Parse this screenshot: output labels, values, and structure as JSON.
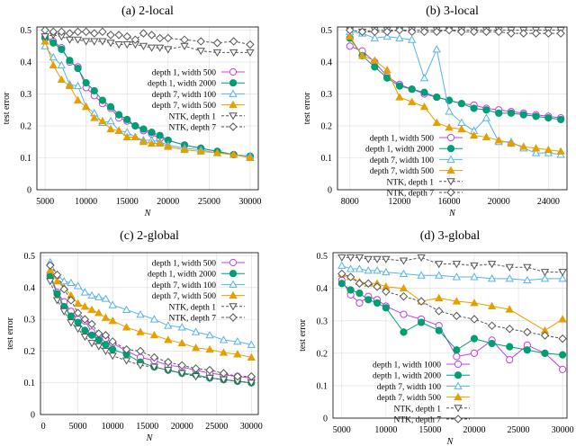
{
  "chart_data": [
    {
      "type": "line",
      "title": "(a) 2-local",
      "xlabel": "N",
      "ylabel": "test error",
      "xlim": [
        4000,
        31000
      ],
      "ylim": [
        0,
        0.51
      ],
      "xticks": [
        5000,
        10000,
        15000,
        20000,
        25000,
        30000
      ],
      "yticks": [
        0,
        0.1,
        0.2,
        0.3,
        0.4,
        0.5
      ],
      "grid": true,
      "legend": "center-right",
      "x": [
        5000,
        6000,
        7000,
        8000,
        9000,
        10000,
        11000,
        12000,
        13000,
        14000,
        15000,
        16000,
        17000,
        18000,
        19000,
        20000,
        22000,
        24000,
        26000,
        28000,
        30000
      ],
      "series": [
        {
          "name": "depth 1, width 500",
          "values": [
            0.48,
            0.465,
            0.445,
            0.4,
            0.385,
            0.32,
            0.295,
            0.27,
            0.255,
            0.225,
            0.215,
            0.2,
            0.185,
            0.175,
            0.16,
            0.155,
            0.14,
            0.13,
            0.12,
            0.11,
            0.105
          ]
        },
        {
          "name": "depth 1, width 2000",
          "values": [
            0.475,
            0.46,
            0.44,
            0.405,
            0.38,
            0.335,
            0.31,
            0.28,
            0.26,
            0.235,
            0.22,
            0.2,
            0.19,
            0.18,
            0.17,
            0.155,
            0.14,
            0.13,
            0.12,
            0.11,
            0.105
          ]
        },
        {
          "name": "depth 7, width 100",
          "values": [
            0.45,
            0.415,
            0.39,
            0.33,
            0.325,
            0.26,
            0.24,
            0.21,
            0.215,
            0.185,
            0.18,
            0.165,
            0.155,
            0.155,
            0.15,
            0.14,
            0.13,
            0.125,
            0.115,
            0.11,
            0.105
          ]
        },
        {
          "name": "depth 7, width 500",
          "values": [
            0.465,
            0.39,
            0.345,
            0.325,
            0.28,
            0.26,
            0.225,
            0.215,
            0.19,
            0.185,
            0.165,
            0.165,
            0.15,
            0.145,
            0.145,
            0.135,
            0.125,
            0.12,
            0.115,
            0.11,
            0.1
          ]
        },
        {
          "name": "NTK, depth 1",
          "values": [
            0.48,
            0.485,
            0.48,
            0.47,
            0.47,
            0.465,
            0.465,
            0.465,
            0.46,
            0.455,
            0.455,
            0.455,
            0.45,
            0.445,
            0.445,
            0.44,
            0.45,
            0.435,
            0.43,
            0.43,
            0.43
          ]
        },
        {
          "name": "NTK, depth 7",
          "values": [
            0.5,
            0.495,
            0.495,
            0.49,
            0.495,
            0.495,
            0.49,
            0.495,
            0.485,
            0.485,
            0.48,
            0.47,
            0.49,
            0.485,
            0.475,
            0.475,
            0.47,
            0.465,
            0.46,
            0.465,
            0.455
          ]
        }
      ]
    },
    {
      "type": "line",
      "title": "(b) 3-local",
      "xlabel": "N",
      "ylabel": "test error",
      "xlim": [
        7000,
        25500
      ],
      "ylim": [
        0,
        0.51
      ],
      "xticks": [
        8000,
        12000,
        16000,
        20000,
        24000
      ],
      "yticks": [
        0,
        0.1,
        0.2,
        0.3,
        0.4,
        0.5
      ],
      "grid": true,
      "legend": "bottom-left",
      "x": [
        8000,
        9000,
        10000,
        11000,
        12000,
        13000,
        14000,
        15000,
        16000,
        17000,
        18000,
        19000,
        20000,
        21000,
        22000,
        23000,
        24000,
        25000
      ],
      "series": [
        {
          "name": "depth 1, width 500",
          "values": [
            0.45,
            0.435,
            0.4,
            0.355,
            0.33,
            0.315,
            0.3,
            0.29,
            0.28,
            0.27,
            0.265,
            0.255,
            0.25,
            0.245,
            0.24,
            0.235,
            0.23,
            0.225
          ]
        },
        {
          "name": "depth 1, width 2000",
          "values": [
            0.475,
            0.42,
            0.385,
            0.35,
            0.325,
            0.315,
            0.305,
            0.29,
            0.28,
            0.27,
            0.255,
            0.25,
            0.24,
            0.24,
            0.235,
            0.23,
            0.225,
            0.22
          ]
        },
        {
          "name": "depth 7, width 100",
          "values": [
            0.495,
            0.49,
            0.475,
            0.48,
            0.475,
            0.47,
            0.35,
            0.44,
            0.245,
            0.21,
            0.185,
            0.225,
            0.15,
            0.15,
            0.13,
            0.115,
            0.115,
            0.11
          ]
        },
        {
          "name": "depth 7, width 500",
          "values": [
            0.48,
            0.42,
            0.405,
            0.375,
            0.29,
            0.275,
            0.26,
            0.21,
            0.195,
            0.19,
            0.17,
            0.165,
            0.155,
            0.145,
            0.135,
            0.13,
            0.125,
            0.12
          ]
        },
        {
          "name": "NTK, depth 1",
          "values": [
            0.5,
            0.495,
            0.5,
            0.5,
            0.5,
            0.5,
            0.5,
            0.5,
            0.5,
            0.5,
            0.5,
            0.5,
            0.5,
            0.5,
            0.5,
            0.5,
            0.5,
            0.5
          ]
        },
        {
          "name": "NTK, depth 7",
          "values": [
            0.5,
            0.495,
            0.495,
            0.495,
            0.5,
            0.495,
            0.495,
            0.495,
            0.5,
            0.495,
            0.495,
            0.495,
            0.495,
            0.49,
            0.49,
            0.49,
            0.49,
            0.49
          ]
        }
      ]
    },
    {
      "type": "line",
      "title": "(c) 2-global",
      "xlabel": "N",
      "ylabel": "test error",
      "xlim": [
        -400,
        31000
      ],
      "ylim": [
        0,
        0.51
      ],
      "xticks": [
        0,
        5000,
        10000,
        15000,
        20000,
        25000,
        30000
      ],
      "yticks": [
        0,
        0.1,
        0.2,
        0.3,
        0.4,
        0.5
      ],
      "grid": true,
      "legend": "top-right",
      "x": [
        1000,
        2000,
        3000,
        4000,
        5000,
        6000,
        7000,
        8000,
        9000,
        10000,
        12000,
        14000,
        16000,
        18000,
        20000,
        22000,
        24000,
        26000,
        28000,
        30000
      ],
      "series": [
        {
          "name": "depth 1, width 500",
          "values": [
            0.44,
            0.385,
            0.355,
            0.325,
            0.3,
            0.295,
            0.26,
            0.25,
            0.24,
            0.225,
            0.2,
            0.18,
            0.17,
            0.155,
            0.15,
            0.14,
            0.13,
            0.125,
            0.12,
            0.115
          ]
        },
        {
          "name": "depth 1, width 2000",
          "values": [
            0.435,
            0.38,
            0.34,
            0.31,
            0.29,
            0.265,
            0.25,
            0.235,
            0.22,
            0.205,
            0.19,
            0.165,
            0.15,
            0.14,
            0.13,
            0.125,
            0.115,
            0.11,
            0.105,
            0.1
          ]
        },
        {
          "name": "depth 7, width 100",
          "values": [
            0.48,
            0.44,
            0.42,
            0.415,
            0.405,
            0.385,
            0.375,
            0.37,
            0.365,
            0.345,
            0.33,
            0.315,
            0.3,
            0.28,
            0.275,
            0.26,
            0.25,
            0.235,
            0.23,
            0.22
          ]
        },
        {
          "name": "depth 7, width 500",
          "values": [
            0.455,
            0.42,
            0.4,
            0.375,
            0.35,
            0.34,
            0.33,
            0.32,
            0.305,
            0.295,
            0.275,
            0.26,
            0.25,
            0.235,
            0.225,
            0.21,
            0.205,
            0.195,
            0.19,
            0.18
          ]
        },
        {
          "name": "NTK, depth 1",
          "values": [
            0.42,
            0.36,
            0.325,
            0.29,
            0.27,
            0.245,
            0.225,
            0.215,
            0.2,
            0.185,
            0.17,
            0.155,
            0.15,
            0.14,
            0.13,
            0.12,
            0.115,
            0.11,
            0.105,
            0.1
          ]
        },
        {
          "name": "NTK, depth 7",
          "values": [
            0.47,
            0.44,
            0.395,
            0.36,
            0.32,
            0.3,
            0.285,
            0.255,
            0.25,
            0.23,
            0.205,
            0.2,
            0.18,
            0.165,
            0.155,
            0.145,
            0.14,
            0.13,
            0.12,
            0.12
          ]
        }
      ]
    },
    {
      "type": "line",
      "title": "(d) 3-global",
      "xlabel": "N",
      "ylabel": "test error",
      "xlim": [
        4000,
        30500
      ],
      "ylim": [
        0,
        0.51
      ],
      "xticks": [
        5000,
        10000,
        15000,
        20000,
        25000,
        30000
      ],
      "yticks": [
        0,
        0.1,
        0.2,
        0.3,
        0.4,
        0.5
      ],
      "grid": true,
      "legend": "bottom-left",
      "x": [
        5000,
        6000,
        7000,
        8000,
        9000,
        10000,
        12000,
        14000,
        16000,
        18000,
        20000,
        22000,
        24000,
        26000,
        28000,
        30000
      ],
      "series": [
        {
          "name": "depth 1, width 1000",
          "values": [
            0.425,
            0.38,
            0.355,
            0.375,
            0.365,
            0.345,
            0.32,
            0.305,
            0.285,
            0.19,
            0.2,
            0.24,
            0.18,
            0.225,
            0.2,
            0.15
          ]
        },
        {
          "name": "depth 1, width 2000",
          "values": [
            0.415,
            0.395,
            0.385,
            0.365,
            0.355,
            0.34,
            0.265,
            0.295,
            0.27,
            0.21,
            0.245,
            0.23,
            0.22,
            0.21,
            0.2,
            0.195
          ]
        },
        {
          "name": "depth 7, width 100",
          "values": [
            0.47,
            0.46,
            0.46,
            0.455,
            0.455,
            0.45,
            0.445,
            0.44,
            0.44,
            0.435,
            0.435,
            0.43,
            0.43,
            0.425,
            0.43,
            0.43
          ]
        },
        {
          "name": "depth 7, width 500",
          "values": [
            0.445,
            0.435,
            0.42,
            0.415,
            0.415,
            0.405,
            0.4,
            0.36,
            0.37,
            0.36,
            0.355,
            0.345,
            0.335,
            null,
            0.27,
            0.305
          ]
        },
        {
          "name": "NTK, depth 1",
          "values": [
            0.495,
            0.495,
            0.495,
            0.49,
            0.49,
            0.49,
            0.485,
            0.495,
            0.475,
            0.475,
            0.47,
            0.475,
            0.465,
            0.465,
            0.45,
            0.45
          ]
        },
        {
          "name": "NTK, depth 7",
          "values": [
            0.445,
            0.435,
            0.415,
            0.415,
            0.405,
            0.39,
            0.375,
            0.36,
            0.33,
            0.315,
            0.305,
            0.285,
            0.275,
            0.265,
            0.255,
            0.245
          ]
        }
      ]
    }
  ],
  "styles": [
    {
      "color": "#c040e8",
      "marker": "circle-open",
      "dash": false
    },
    {
      "color": "#009e73",
      "marker": "circle-filled",
      "dash": false
    },
    {
      "color": "#56b4e9",
      "marker": "triangle-open",
      "dash": false
    },
    {
      "color": "#e69f00",
      "marker": "triangle-filled",
      "dash": false
    },
    {
      "color": "#555555",
      "marker": "triangle-down-open",
      "dash": true
    },
    {
      "color": "#555555",
      "marker": "diamond-open",
      "dash": true
    }
  ]
}
